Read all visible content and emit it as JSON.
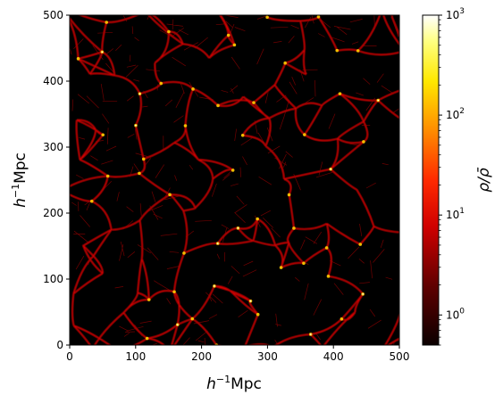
{
  "chart_data": {
    "type": "heatmap",
    "xlabel_base": "h",
    "xlabel_sup": "−1",
    "xlabel_unit": "Mpc",
    "ylabel_base": "h",
    "ylabel_sup": "−1",
    "ylabel_unit": "Mpc",
    "xlim": [
      0,
      500
    ],
    "ylim": [
      0,
      500
    ],
    "x_ticks": [
      0,
      100,
      200,
      300,
      400,
      500
    ],
    "y_ticks": [
      0,
      100,
      200,
      300,
      400,
      500
    ],
    "colorbar": {
      "label": "ρ/ρ̄",
      "scale": "log",
      "colormap": "hot",
      "range": [
        0.5,
        1000
      ],
      "ticks": [
        {
          "value": 1,
          "base": "10",
          "exp": "0"
        },
        {
          "value": 10,
          "base": "10",
          "exp": "1"
        },
        {
          "value": 100,
          "base": "10",
          "exp": "2"
        },
        {
          "value": 1000,
          "base": "10",
          "exp": "3"
        }
      ]
    },
    "field_description_colors": {
      "background": "#000000",
      "filament": "#e00000",
      "node": "#ffd000",
      "peak": "#ffffff"
    }
  }
}
